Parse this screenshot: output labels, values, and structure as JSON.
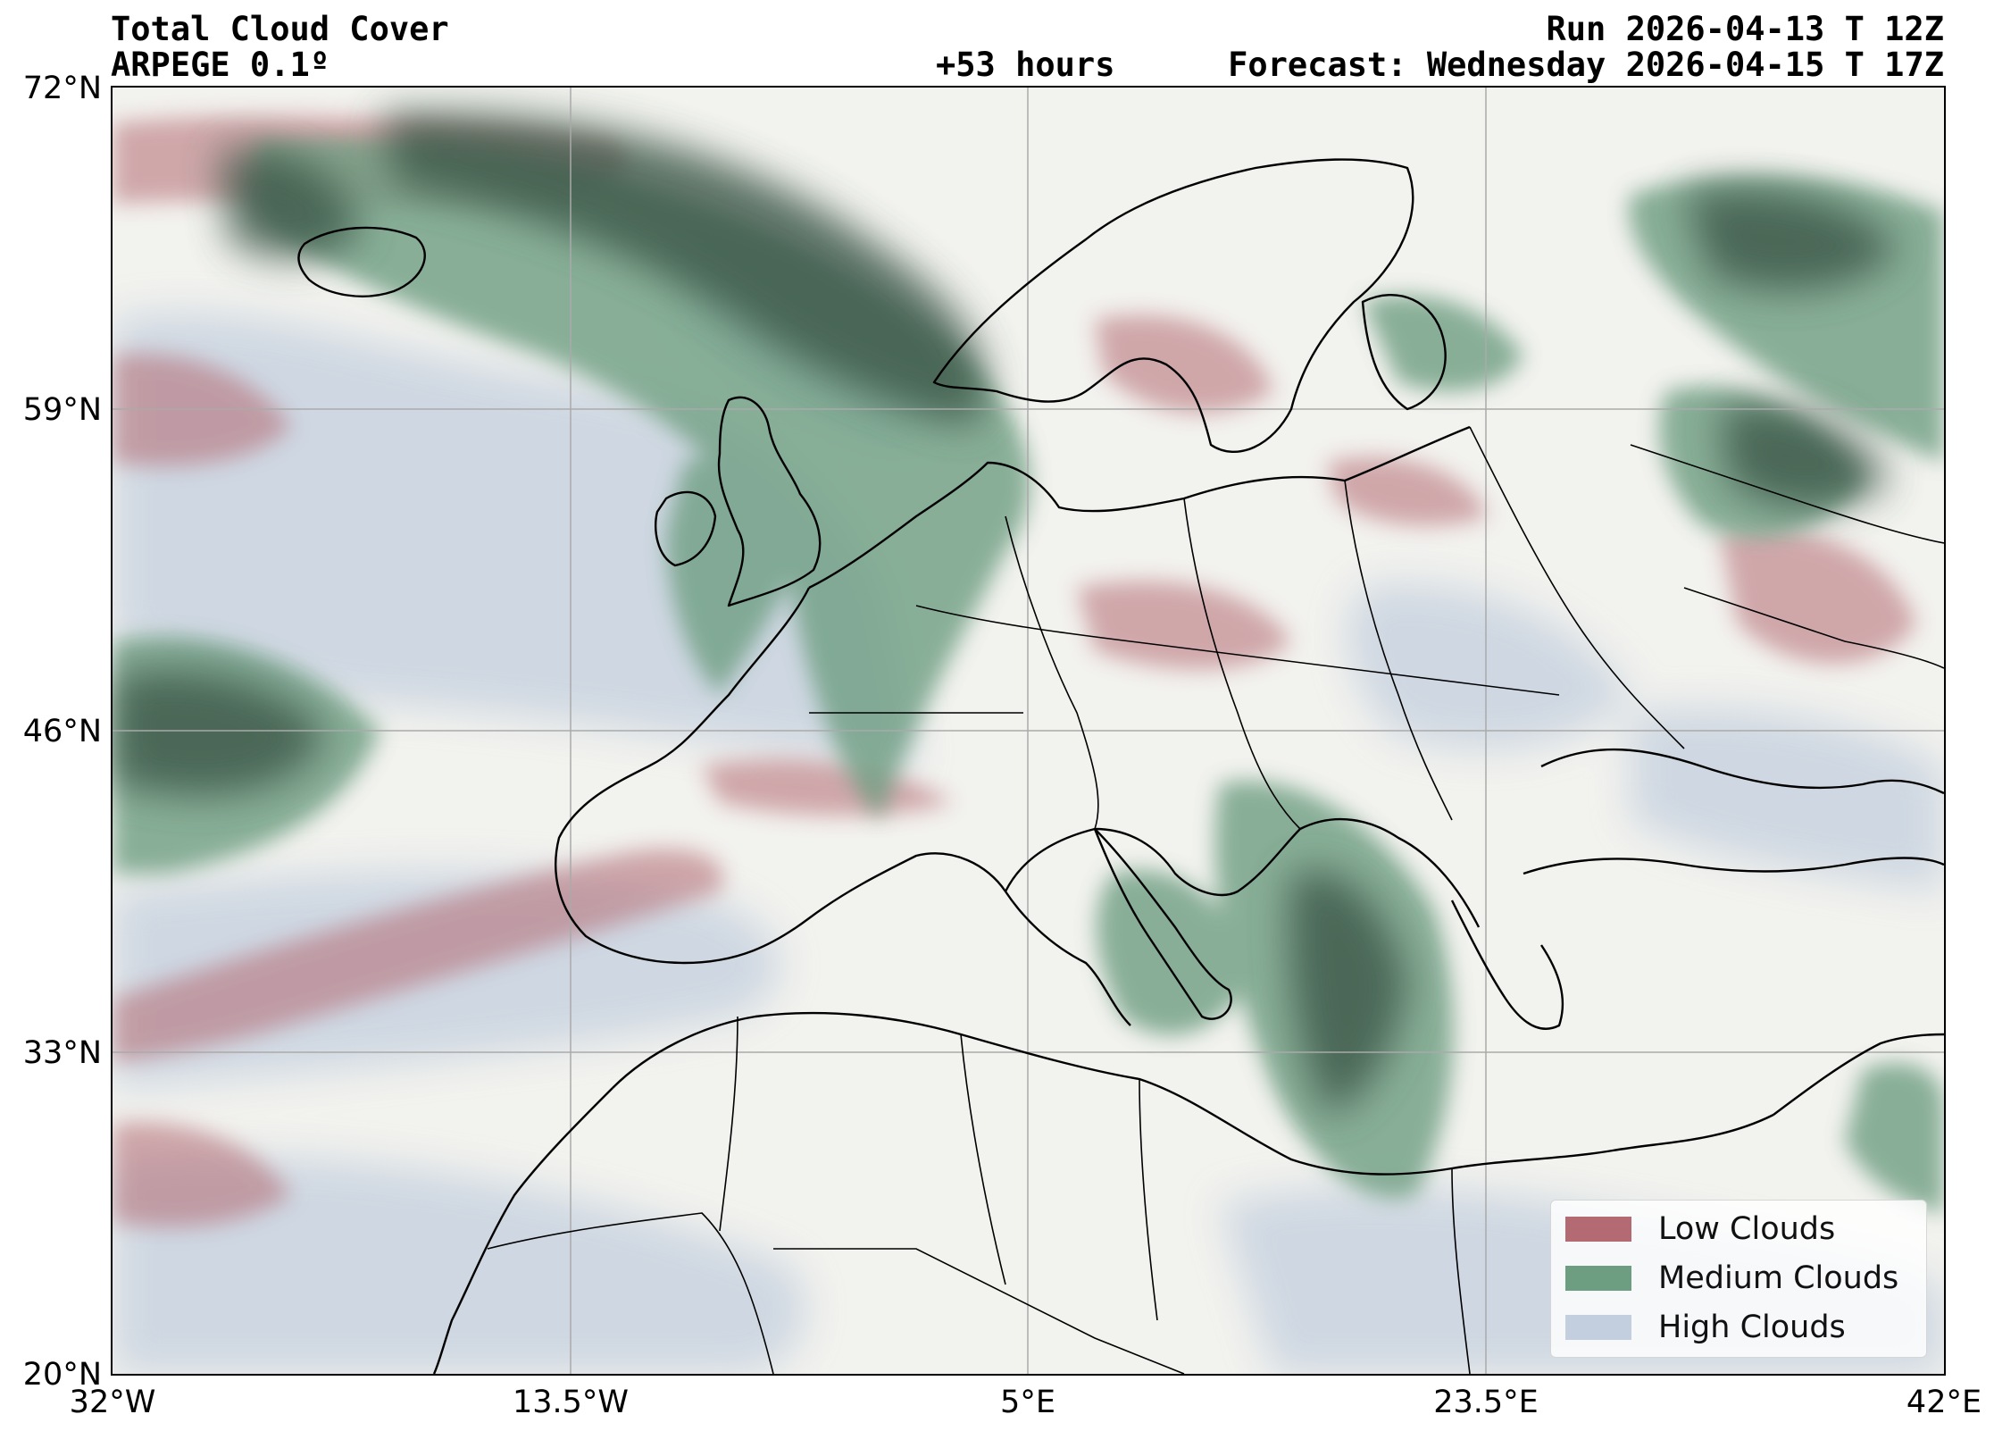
{
  "header": {
    "title": "Total Cloud Cover",
    "model": "ARPEGE 0.1º",
    "run": "Run 2026-04-13 T 12Z",
    "lead": "+53 hours",
    "forecast": "Forecast: Wednesday 2026-04-15 T 17Z"
  },
  "map": {
    "lon_range": [
      -32,
      42
    ],
    "lat_range": [
      20,
      72
    ],
    "lat_ticks": [
      "72°N",
      "59°N",
      "46°N",
      "33°N",
      "20°N"
    ],
    "lon_ticks": [
      "32°W",
      "13.5°W",
      "5°E",
      "23.5°E",
      "42°E"
    ],
    "grid": true,
    "colors": {
      "background": "#f2f2ee",
      "low": "#b46a72",
      "medium": "#6e9e82",
      "high": "#c3cfde",
      "dense": "#3d5848",
      "coastline": "#000000"
    }
  },
  "legend": {
    "placement": "bottom-right",
    "items": [
      {
        "label": "Low Clouds",
        "color": "#b46a72"
      },
      {
        "label": "Medium Clouds",
        "color": "#6e9e82"
      },
      {
        "label": "High Clouds",
        "color": "#c3cfde"
      }
    ]
  }
}
